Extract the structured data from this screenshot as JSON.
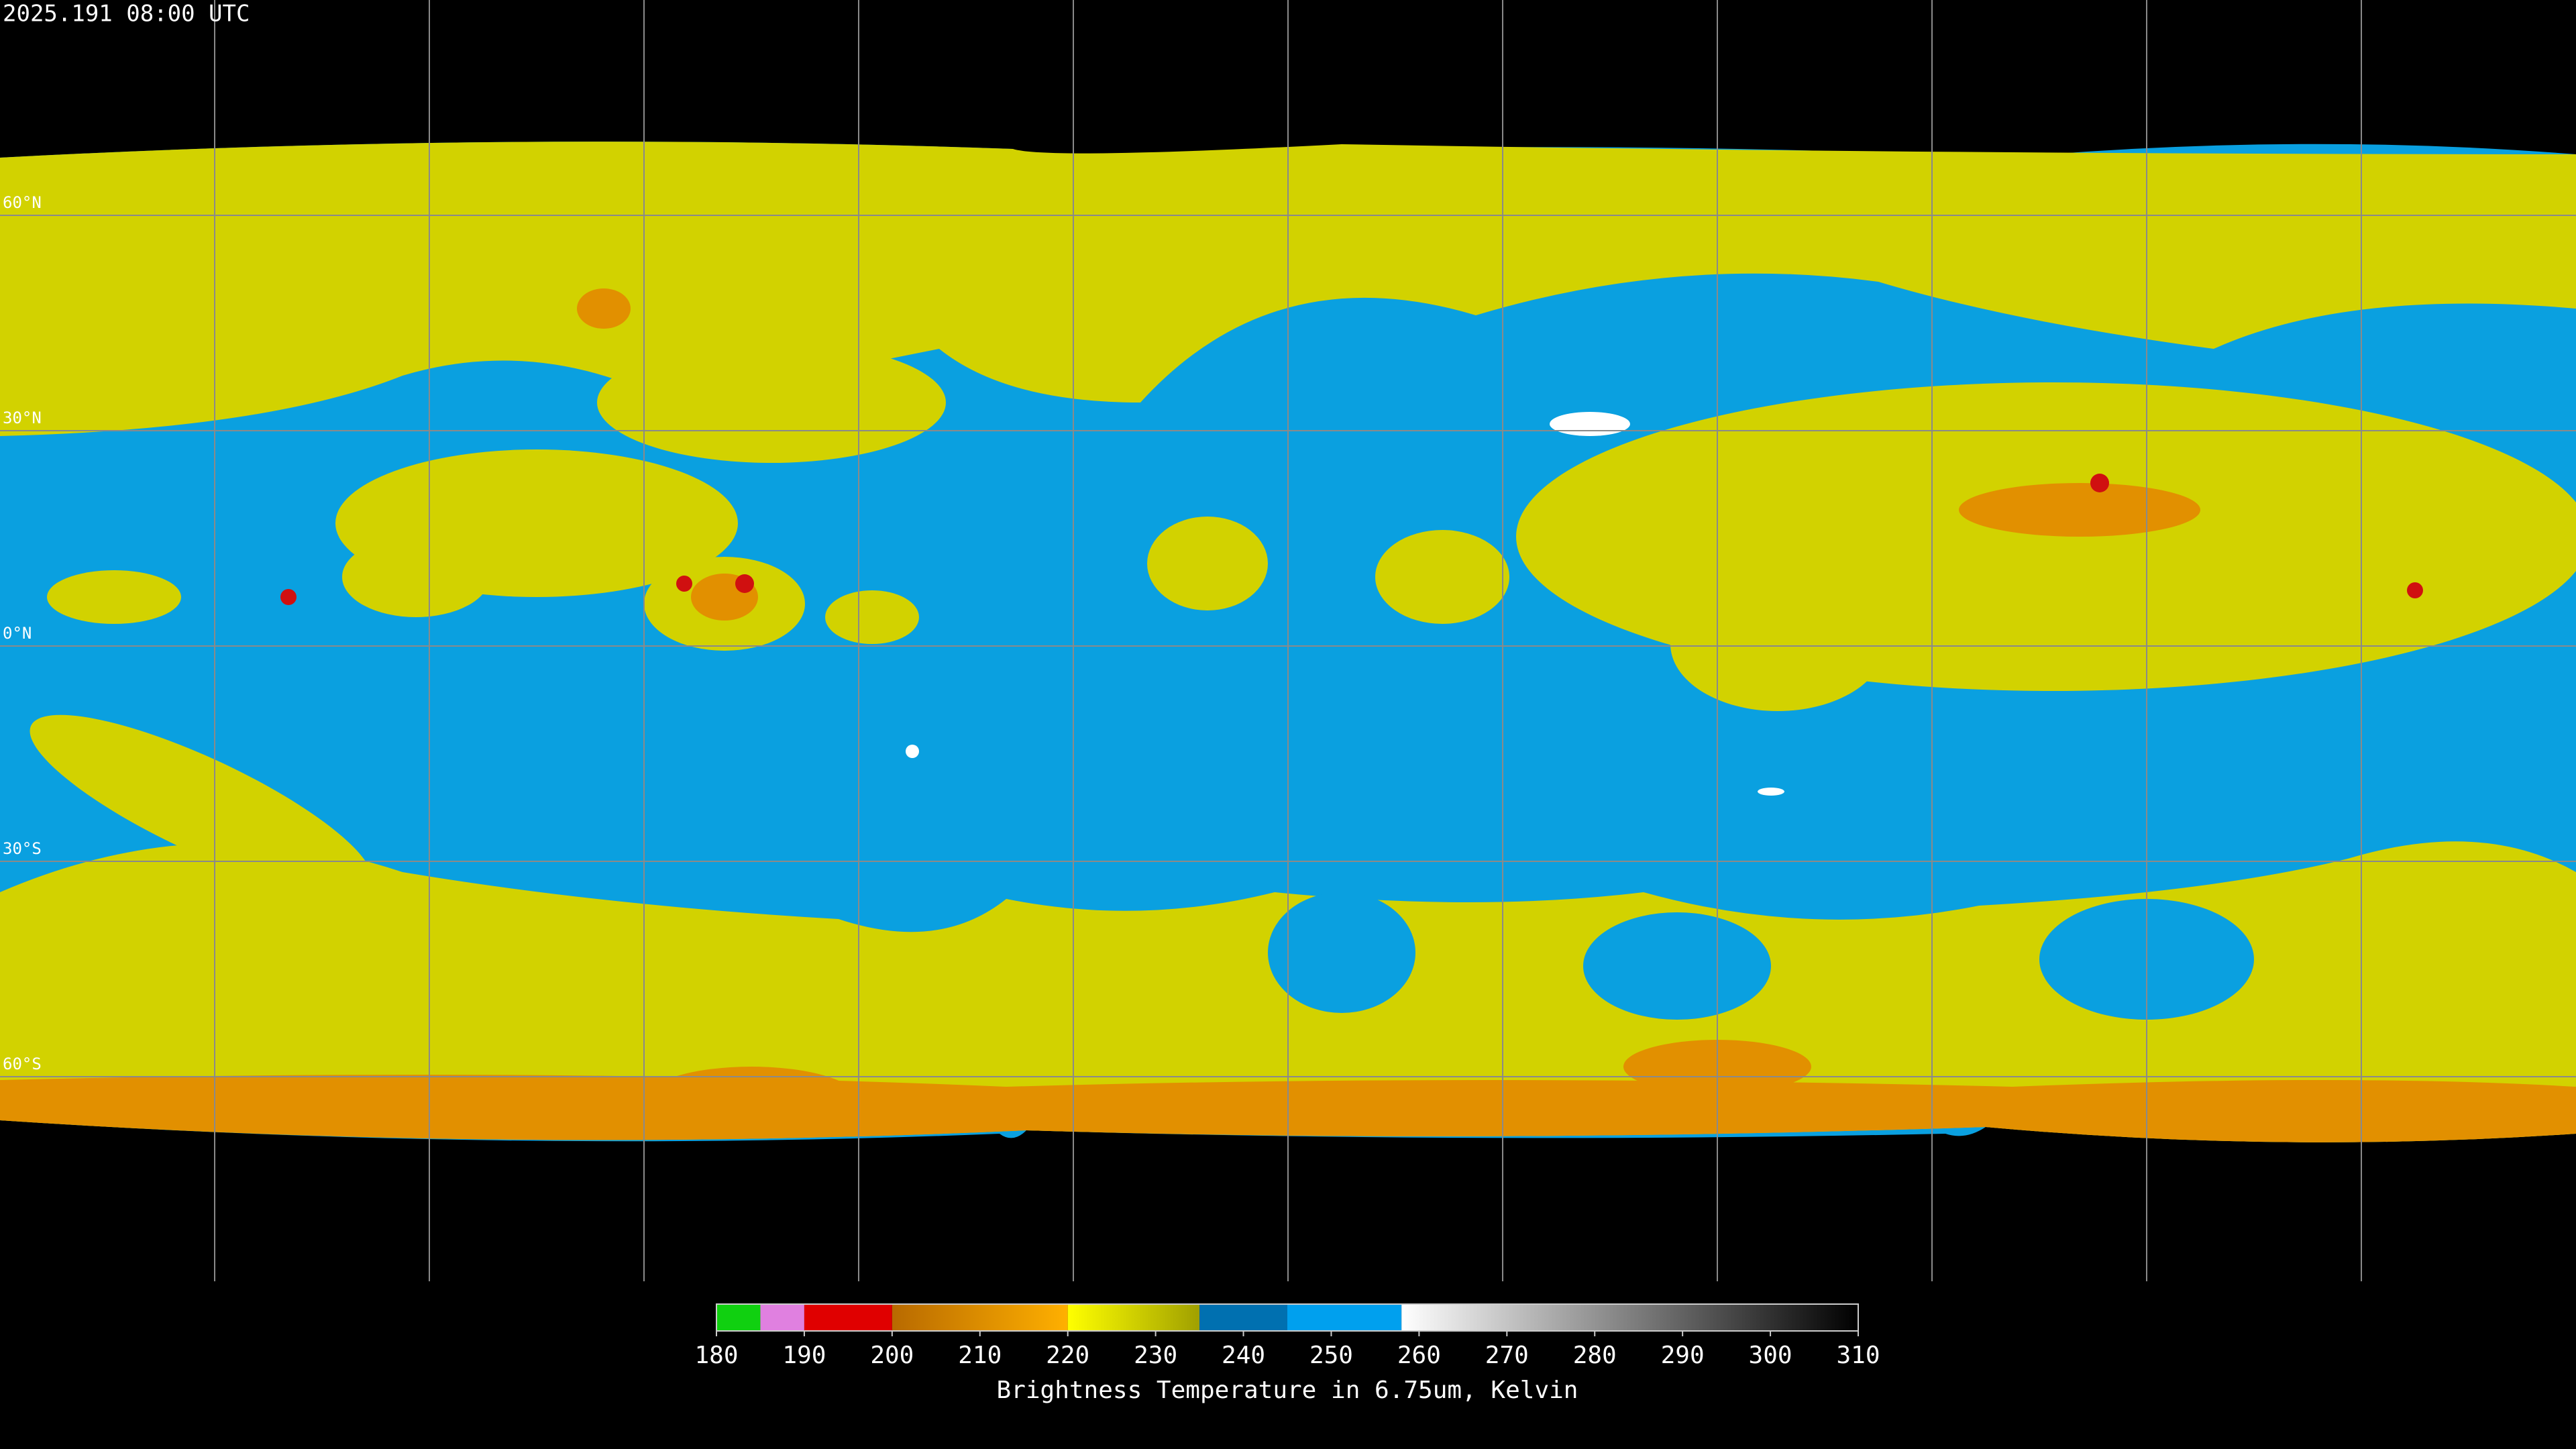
{
  "header": {
    "timestamp": "2025.191 08:00 UTC"
  },
  "map": {
    "lat_labels": [
      "60°N",
      "30°N",
      "0°N",
      "30°S",
      "60°S"
    ]
  },
  "colorbar": {
    "ticks": [
      180,
      190,
      200,
      210,
      220,
      230,
      240,
      250,
      260,
      270,
      280,
      290,
      300,
      310
    ],
    "label": "Brightness Temperature in 6.75um, Kelvin"
  }
}
